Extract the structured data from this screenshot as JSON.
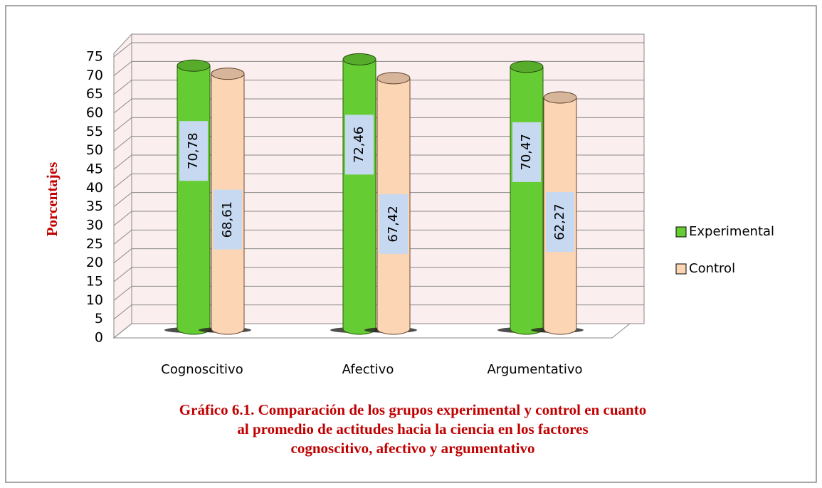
{
  "chart_data": {
    "type": "bar",
    "title": [
      "Gráfico 6.1. Comparación de los grupos experimental y control en cuanto",
      "al promedio de actitudes hacia la ciencia en los factores",
      "cognoscitivo, afectivo y argumentativo"
    ],
    "y_label": "Porcentajes",
    "categories": [
      "Cognoscitivo",
      "Afectivo",
      "Argumentativo"
    ],
    "series": [
      {
        "name": "Experimental",
        "color": "#66cc33",
        "values": [
          70.78,
          72.46,
          70.47
        ],
        "value_labels": [
          "70,78",
          "72,46",
          "70,47"
        ]
      },
      {
        "name": "Control",
        "color": "#fcd5b5",
        "values": [
          68.61,
          67.42,
          62.27
        ],
        "value_labels": [
          "68,61",
          "67,42",
          "62,27"
        ]
      }
    ],
    "ylim": [
      0,
      75
    ],
    "yticks": [
      0,
      5,
      10,
      15,
      20,
      25,
      30,
      35,
      40,
      45,
      50,
      55,
      60,
      65,
      70,
      75
    ],
    "grid": true,
    "legend": "right"
  }
}
